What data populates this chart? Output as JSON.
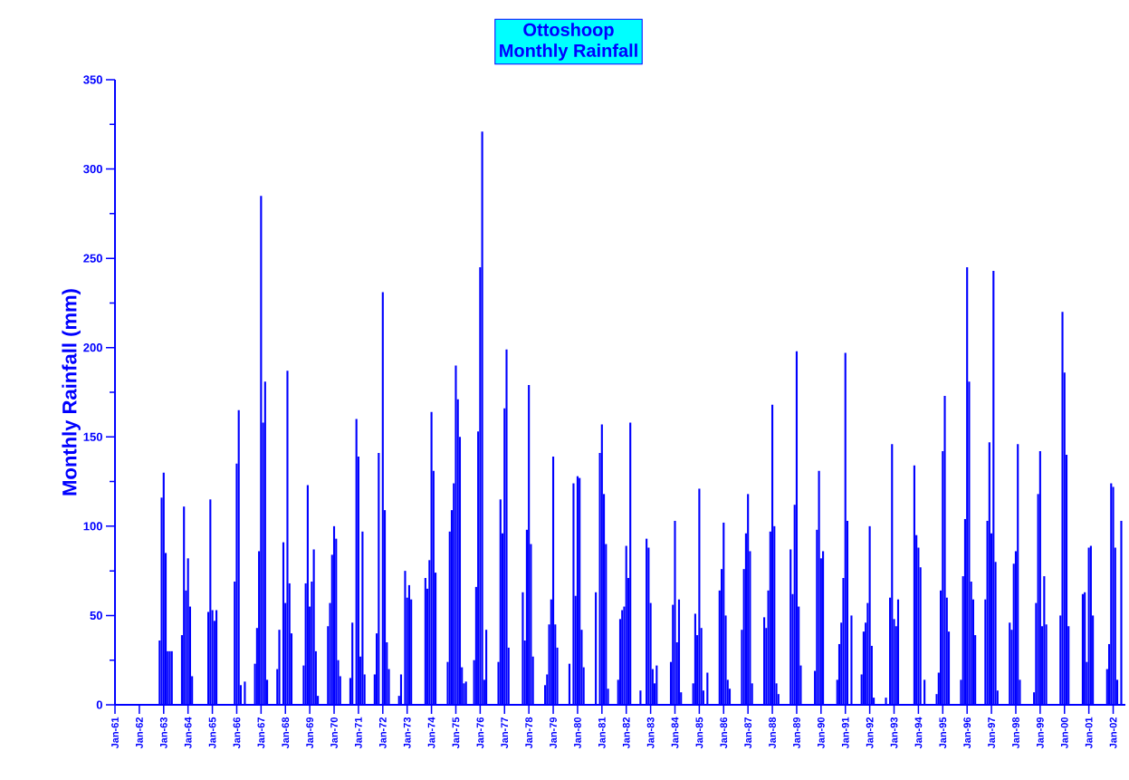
{
  "chart_data": {
    "type": "bar",
    "title": "Ottoshoop",
    "subtitle": "Monthly Rainfall",
    "ylabel": "Monthly Rainfall (mm)",
    "color": "#0000ff",
    "x": [
      "1962-11",
      "1962-12",
      "1963-01",
      "1963-02",
      "1963-03",
      "1963-04",
      "1963-05",
      "1963-10",
      "1963-11",
      "1963-12",
      "1964-01",
      "1964-02",
      "1964-03",
      "1964-11",
      "1964-12",
      "1965-01",
      "1965-02",
      "1965-03",
      "1965-12",
      "1966-01",
      "1966-02",
      "1966-03",
      "1966-05",
      "1966-10",
      "1966-11",
      "1966-12",
      "1967-01",
      "1967-02",
      "1967-03",
      "1967-04",
      "1967-09",
      "1967-10",
      "1967-12",
      "1968-01",
      "1968-02",
      "1968-03",
      "1968-04",
      "1968-10",
      "1968-11",
      "1968-12",
      "1969-01",
      "1969-02",
      "1969-03",
      "1969-04",
      "1969-05",
      "1969-10",
      "1969-11",
      "1969-12",
      "1970-01",
      "1970-02",
      "1970-03",
      "1970-04",
      "1970-09",
      "1970-10",
      "1970-12",
      "1971-01",
      "1971-02",
      "1971-03",
      "1971-04",
      "1971-09",
      "1971-10",
      "1971-11",
      "1972-01",
      "1972-02",
      "1972-03",
      "1972-04",
      "1972-09",
      "1972-10",
      "1972-12",
      "1973-01",
      "1973-02",
      "1973-03",
      "1973-10",
      "1973-11",
      "1973-12",
      "1974-01",
      "1974-02",
      "1974-03",
      "1974-09",
      "1974-10",
      "1974-11",
      "1974-12",
      "1975-01",
      "1975-02",
      "1975-03",
      "1975-04",
      "1975-05",
      "1975-06",
      "1975-10",
      "1975-11",
      "1975-12",
      "1976-01",
      "1976-02",
      "1976-03",
      "1976-04",
      "1976-10",
      "1976-11",
      "1976-12",
      "1977-01",
      "1977-02",
      "1977-03",
      "1977-10",
      "1977-11",
      "1977-12",
      "1978-01",
      "1978-02",
      "1978-03",
      "1978-09",
      "1978-10",
      "1978-11",
      "1978-12",
      "1979-01",
      "1979-02",
      "1979-03",
      "1979-09",
      "1979-11",
      "1979-12",
      "1980-01",
      "1980-02",
      "1980-03",
      "1980-04",
      "1980-10",
      "1980-12",
      "1981-01",
      "1981-02",
      "1981-03",
      "1981-04",
      "1981-09",
      "1981-10",
      "1981-11",
      "1981-12",
      "1982-01",
      "1982-02",
      "1982-03",
      "1982-08",
      "1982-11",
      "1982-12",
      "1983-01",
      "1983-02",
      "1983-03",
      "1983-04",
      "1983-11",
      "1983-12",
      "1984-01",
      "1984-02",
      "1984-03",
      "1984-04",
      "1984-10",
      "1984-11",
      "1984-12",
      "1985-01",
      "1985-02",
      "1985-03",
      "1985-05",
      "1985-11",
      "1985-12",
      "1986-01",
      "1986-02",
      "1986-03",
      "1986-04",
      "1986-10",
      "1986-11",
      "1986-12",
      "1987-01",
      "1987-02",
      "1987-03",
      "1987-09",
      "1987-10",
      "1987-11",
      "1987-12",
      "1988-01",
      "1988-02",
      "1988-03",
      "1988-04",
      "1988-10",
      "1988-11",
      "1988-12",
      "1989-01",
      "1989-02",
      "1989-03",
      "1989-10",
      "1989-11",
      "1989-12",
      "1990-01",
      "1990-02",
      "1990-09",
      "1990-10",
      "1990-11",
      "1990-12",
      "1991-01",
      "1991-02",
      "1991-04",
      "1991-09",
      "1991-10",
      "1991-11",
      "1991-12",
      "1992-01",
      "1992-02",
      "1992-03",
      "1992-09",
      "1992-11",
      "1992-12",
      "1993-01",
      "1993-02",
      "1993-03",
      "1993-11",
      "1993-12",
      "1994-01",
      "1994-02",
      "1994-04",
      "1994-10",
      "1994-11",
      "1994-12",
      "1995-01",
      "1995-02",
      "1995-03",
      "1995-04",
      "1995-10",
      "1995-11",
      "1995-12",
      "1996-01",
      "1996-02",
      "1996-03",
      "1996-04",
      "1996-05",
      "1996-10",
      "1996-11",
      "1996-12",
      "1997-01",
      "1997-02",
      "1997-03",
      "1997-04",
      "1997-10",
      "1997-11",
      "1997-12",
      "1998-01",
      "1998-02",
      "1998-03",
      "1998-10",
      "1998-11",
      "1998-12",
      "1999-01",
      "1999-02",
      "1999-03",
      "1999-04",
      "1999-11",
      "1999-12",
      "2000-01",
      "2000-02",
      "2000-03",
      "2000-10",
      "2000-11",
      "2000-12",
      "2001-01",
      "2001-02",
      "2001-03",
      "2001-10",
      "2001-11",
      "2001-12",
      "2002-01",
      "2002-02",
      "2002-03",
      "2002-05"
    ],
    "values": [
      36,
      116,
      130,
      85,
      30,
      30,
      30,
      39,
      111,
      64,
      82,
      55,
      16,
      52,
      115,
      53,
      47,
      53,
      69,
      135,
      165,
      11,
      13,
      23,
      43,
      86,
      285,
      158,
      181,
      14,
      20,
      42,
      91,
      57,
      187,
      68,
      40,
      22,
      68,
      123,
      55,
      69,
      87,
      30,
      5,
      44,
      57,
      84,
      100,
      93,
      25,
      16,
      15,
      46,
      160,
      139,
      27,
      97,
      17,
      17,
      40,
      141,
      231,
      109,
      35,
      20,
      5,
      17,
      75,
      60,
      67,
      59,
      71,
      65,
      81,
      164,
      131,
      74,
      24,
      97,
      109,
      124,
      190,
      171,
      150,
      21,
      12,
      13,
      25,
      66,
      153,
      245,
      321,
      14,
      42,
      24,
      115,
      96,
      166,
      199,
      32,
      63,
      36,
      98,
      179,
      90,
      27,
      11,
      17,
      45,
      59,
      139,
      45,
      32,
      23,
      124,
      61,
      128,
      127,
      42,
      21,
      63,
      141,
      157,
      118,
      90,
      9,
      14,
      48,
      53,
      55,
      89,
      71,
      158,
      8,
      93,
      88,
      57,
      20,
      12,
      22,
      24,
      56,
      103,
      35,
      59,
      7,
      12,
      51,
      39,
      121,
      43,
      8,
      18,
      64,
      76,
      102,
      50,
      14,
      9,
      42,
      76,
      96,
      118,
      86,
      12,
      49,
      43,
      64,
      97,
      168,
      100,
      12,
      6,
      87,
      62,
      112,
      198,
      55,
      22,
      19,
      98,
      131,
      82,
      86,
      14,
      34,
      46,
      71,
      197,
      103,
      50,
      17,
      41,
      46,
      57,
      100,
      33,
      4,
      4,
      60,
      146,
      48,
      44,
      59,
      134,
      95,
      88,
      77,
      14,
      6,
      18,
      64,
      142,
      173,
      60,
      41,
      14,
      72,
      104,
      245,
      181,
      69,
      59,
      39,
      59,
      103,
      147,
      96,
      243,
      80,
      8,
      46,
      42,
      79,
      86,
      146,
      14,
      7,
      57,
      118,
      142,
      44,
      72,
      45,
      50,
      220,
      186,
      140,
      44,
      62,
      63,
      24,
      88,
      89,
      50,
      20,
      34,
      124,
      122,
      88,
      14,
      103
    ],
    "xlim": [
      "1961-01",
      "2002-07"
    ],
    "ylim": [
      0,
      350
    ],
    "yticks": [
      0,
      50,
      100,
      150,
      200,
      250,
      300,
      350
    ],
    "xticks": [
      {
        "value": "1961-01",
        "label": "Jan-61"
      },
      {
        "value": "1962-01",
        "label": "Jan-62"
      },
      {
        "value": "1963-01",
        "label": "Jan-63"
      },
      {
        "value": "1964-01",
        "label": "Jan-64"
      },
      {
        "value": "1965-01",
        "label": "Jan-65"
      },
      {
        "value": "1966-01",
        "label": "Jan-66"
      },
      {
        "value": "1967-01",
        "label": "Jan-67"
      },
      {
        "value": "1968-01",
        "label": "Jan-68"
      },
      {
        "value": "1969-01",
        "label": "Jan-69"
      },
      {
        "value": "1970-01",
        "label": "Jan-70"
      },
      {
        "value": "1971-01",
        "label": "Jan-71"
      },
      {
        "value": "1972-01",
        "label": "Jan-72"
      },
      {
        "value": "1973-01",
        "label": "Jan-73"
      },
      {
        "value": "1974-01",
        "label": "Jan-74"
      },
      {
        "value": "1975-01",
        "label": "Jan-75"
      },
      {
        "value": "1976-01",
        "label": "Jan-76"
      },
      {
        "value": "1977-01",
        "label": "Jan-77"
      },
      {
        "value": "1978-01",
        "label": "Jan-78"
      },
      {
        "value": "1979-01",
        "label": "Jan-79"
      },
      {
        "value": "1980-01",
        "label": "Jan-80"
      },
      {
        "value": "1981-01",
        "label": "Jan-81"
      },
      {
        "value": "1982-01",
        "label": "Jan-82"
      },
      {
        "value": "1983-01",
        "label": "Jan-83"
      },
      {
        "value": "1984-01",
        "label": "Jan-84"
      },
      {
        "value": "1985-01",
        "label": "Jan-85"
      },
      {
        "value": "1986-01",
        "label": "Jan-86"
      },
      {
        "value": "1987-01",
        "label": "Jan-87"
      },
      {
        "value": "1988-01",
        "label": "Jan-88"
      },
      {
        "value": "1989-01",
        "label": "Jan-89"
      },
      {
        "value": "1990-01",
        "label": "Jan-90"
      },
      {
        "value": "1991-01",
        "label": "Jan-91"
      },
      {
        "value": "1992-01",
        "label": "Jan-92"
      },
      {
        "value": "1993-01",
        "label": "Jan-93"
      },
      {
        "value": "1994-01",
        "label": "Jan-94"
      },
      {
        "value": "1995-01",
        "label": "Jan-95"
      },
      {
        "value": "1996-01",
        "label": "Jan-96"
      },
      {
        "value": "1997-01",
        "label": "Jan-97"
      },
      {
        "value": "1998-01",
        "label": "Jan-98"
      },
      {
        "value": "1999-01",
        "label": "Jan-99"
      },
      {
        "value": "2000-01",
        "label": "Jan-00"
      },
      {
        "value": "2001-01",
        "label": "Jan-01"
      },
      {
        "value": "2002-01",
        "label": "Jan-02"
      }
    ]
  }
}
